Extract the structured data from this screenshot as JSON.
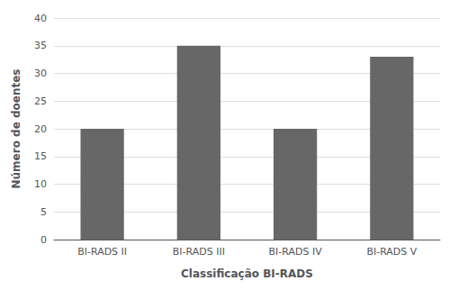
{
  "chart_data": {
    "type": "bar",
    "categories": [
      "BI-RADS II",
      "BI-RADS III",
      "BI-RADS IV",
      "BI-RADS V"
    ],
    "values": [
      20,
      35,
      20,
      33
    ],
    "color": "#676767",
    "xlabel": "Classificação BI-RADS",
    "ylabel": "Número de doentes",
    "ylim": [
      0,
      40
    ],
    "yticks": [
      0,
      5,
      10,
      15,
      20,
      25,
      30,
      35,
      40
    ],
    "grid": true
  }
}
